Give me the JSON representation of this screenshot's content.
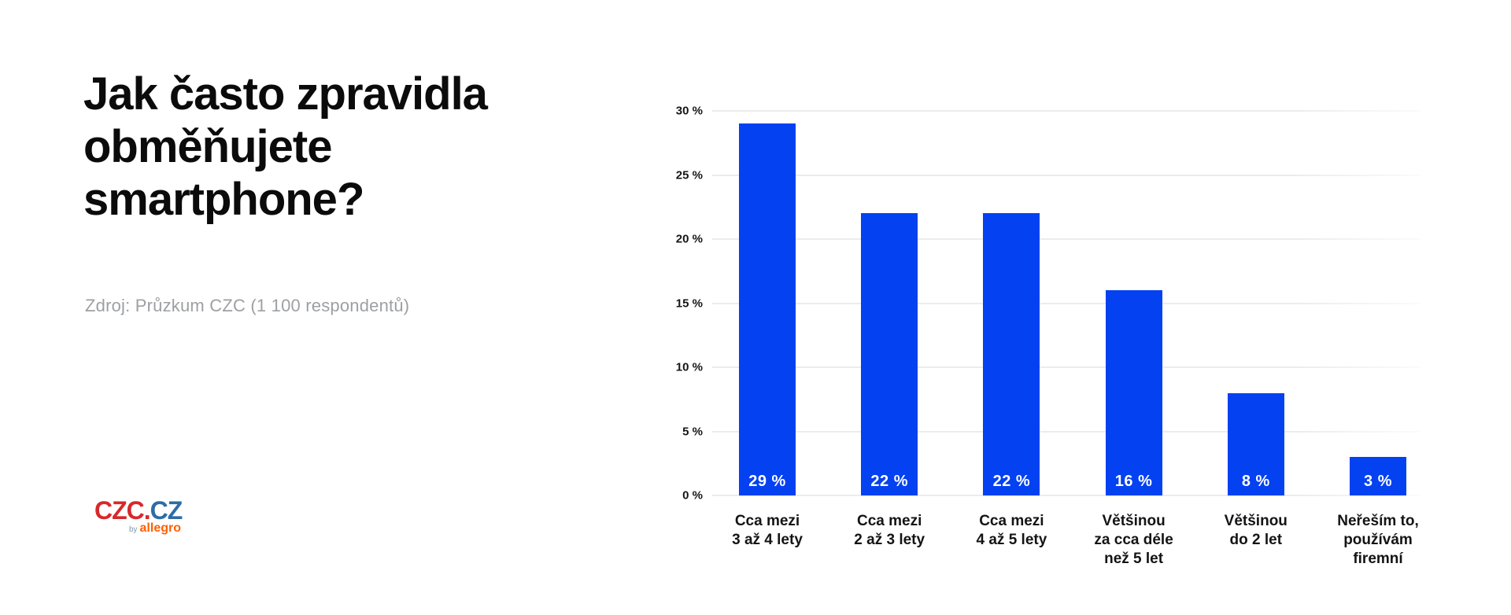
{
  "page": {
    "background": "#ffffff"
  },
  "header": {
    "title": "Jak často zpravidla\nobměňujete\nsmartphone?",
    "source_note": "Zdroj: Průzkum CZC (1 100 respondentů)"
  },
  "logo": {
    "part_red": "CZC.",
    "part_blue": "CZ",
    "by_label": "by",
    "brand": "allegro",
    "colors": {
      "red": "#d7282a",
      "blue": "#2e6ca6",
      "orange": "#ff5f00",
      "by_gray": "#8098ab"
    }
  },
  "chart_data": {
    "type": "bar",
    "title": "",
    "xlabel": "",
    "ylabel": "",
    "categories": [
      "Cca mezi\n3 až 4 lety",
      "Cca mezi\n2 až 3 lety",
      "Cca mezi\n4 až 5 lety",
      "Většinou\nza cca déle\nnež 5 let",
      "Většinou\ndo 2 let",
      "Neřeším to,\npoužívám\nfiremní"
    ],
    "values": [
      29,
      22,
      22,
      16,
      8,
      3
    ],
    "value_labels": [
      "29 %",
      "22 %",
      "22 %",
      "16 %",
      "8 %",
      "3 %"
    ],
    "y_ticks": [
      {
        "value": 0,
        "label": "0 %"
      },
      {
        "value": 5,
        "label": "5 %"
      },
      {
        "value": 10,
        "label": "10 %"
      },
      {
        "value": 15,
        "label": "15 %"
      },
      {
        "value": 20,
        "label": "20 %"
      },
      {
        "value": 25,
        "label": "25 %"
      },
      {
        "value": 30,
        "label": "30 %"
      }
    ],
    "ylim": [
      0,
      30
    ],
    "grid": "horizontal",
    "legend": "none",
    "bar_color": "#0441f1",
    "value_label_color": "#ffffff"
  }
}
